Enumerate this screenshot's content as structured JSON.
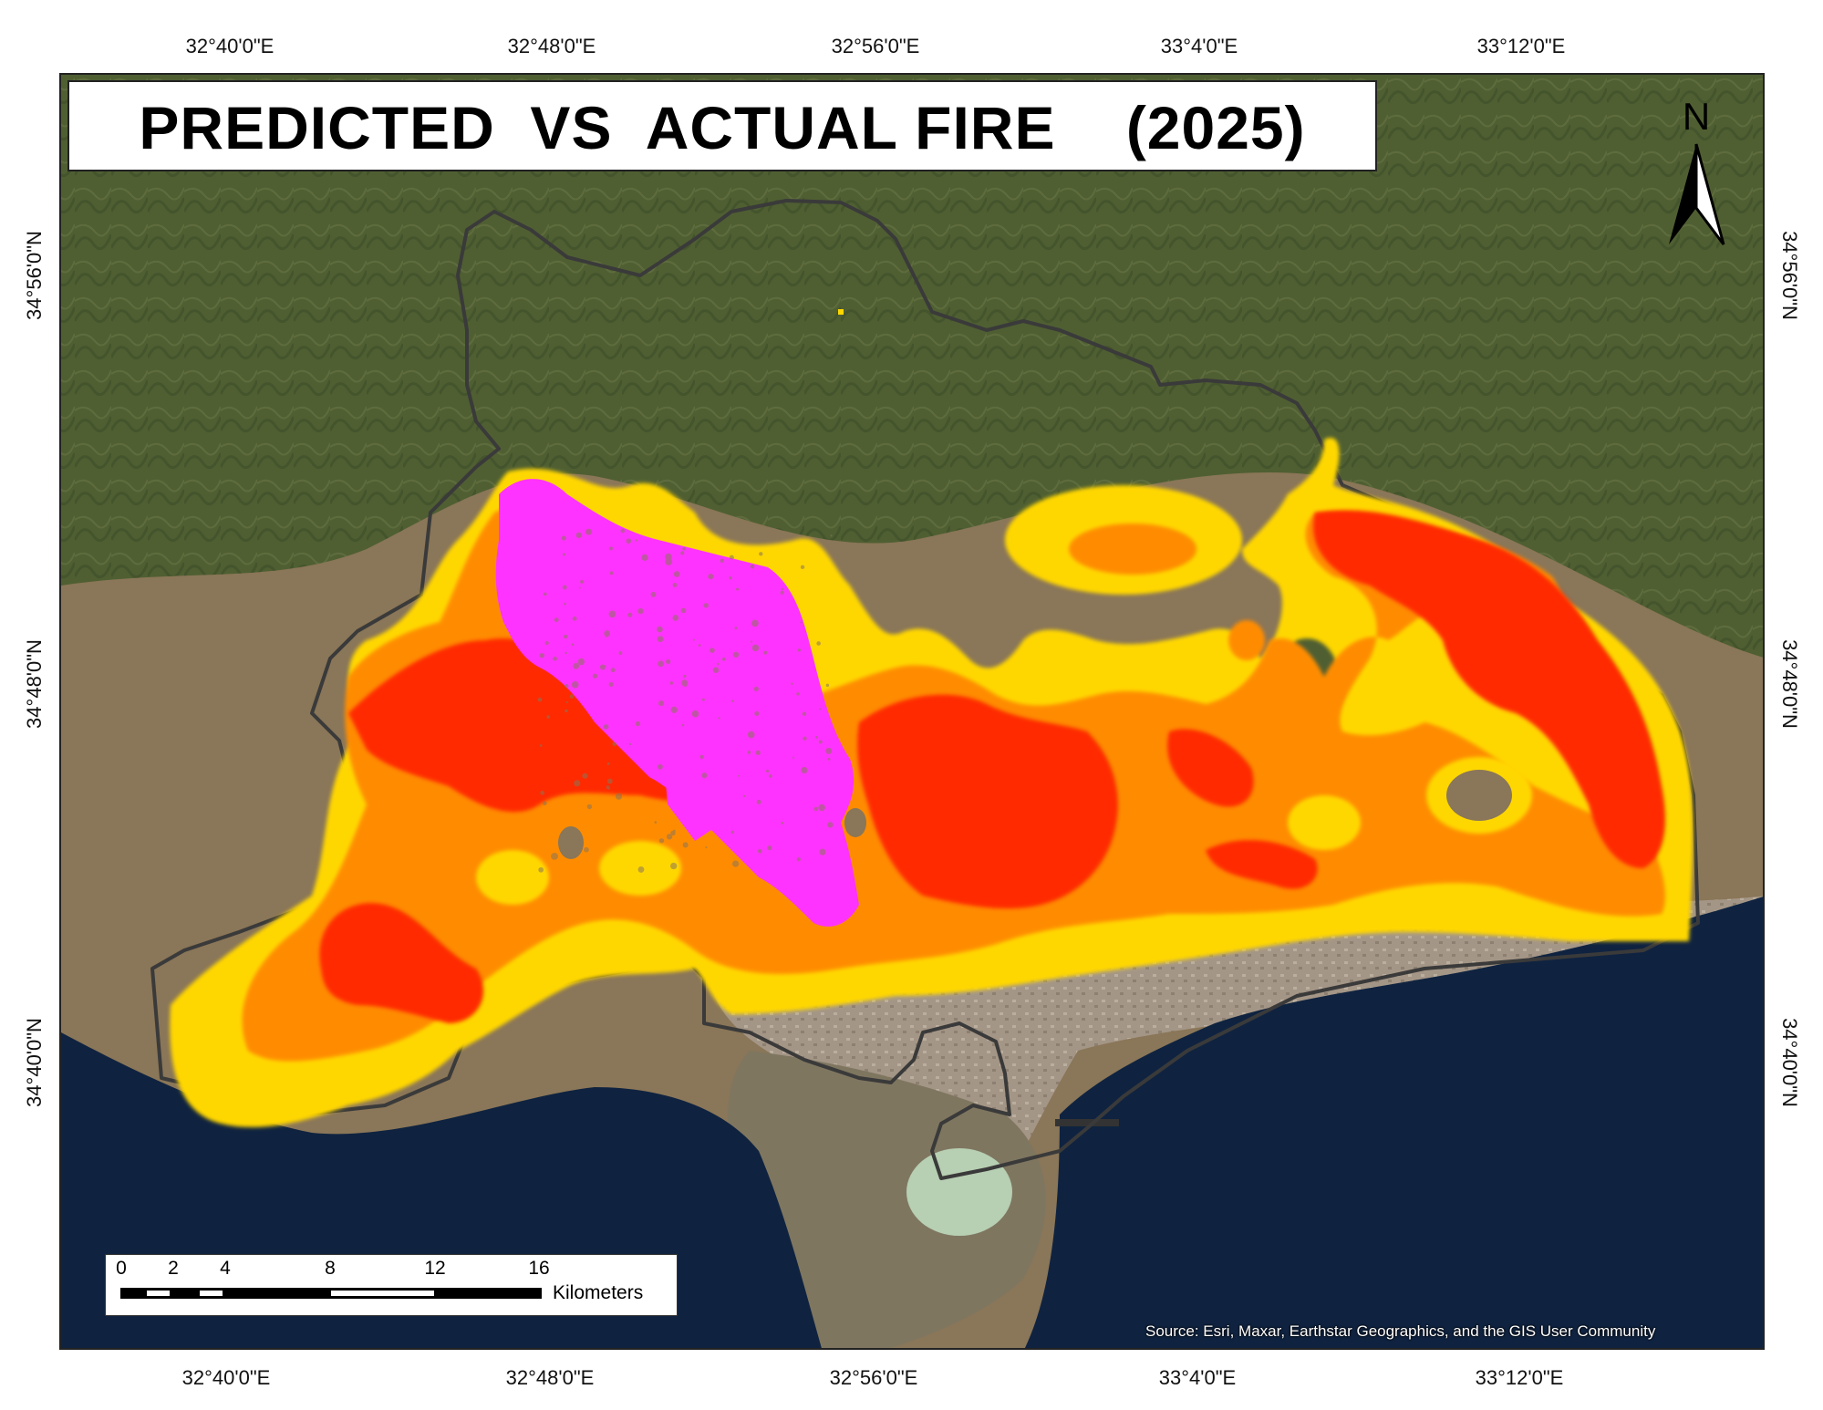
{
  "title": "PREDICTED  VS  ACTUAL FIRE    (2025)",
  "graticule": {
    "longitudes": [
      "32°40'0\"E",
      "32°48'0\"E",
      "32°56'0\"E",
      "33°4'0\"E",
      "33°12'0\"E"
    ],
    "latitudes": [
      "34°56'0\"N",
      "34°48'0\"N",
      "34°40'0\"N"
    ]
  },
  "north_arrow": {
    "label": "N"
  },
  "scale_bar": {
    "ticks": [
      "0",
      "2",
      "4",
      "8",
      "12",
      "16"
    ],
    "unit": "Kilometers"
  },
  "attribution": "Source: Esri, Maxar, Earthstar Geographics, and the GIS User Community",
  "legend_colors": {
    "very_high": "#ff2a00",
    "high": "#ff8c00",
    "moderate": "#ffd700",
    "actual_fire": "#ff33ff"
  },
  "basemap_colors": {
    "mountain": "#4f5f32",
    "lowland": "#8a7658",
    "urban": "#a89c8e",
    "sea": "#0f2340",
    "salt_lake": "#b7cfb2"
  }
}
